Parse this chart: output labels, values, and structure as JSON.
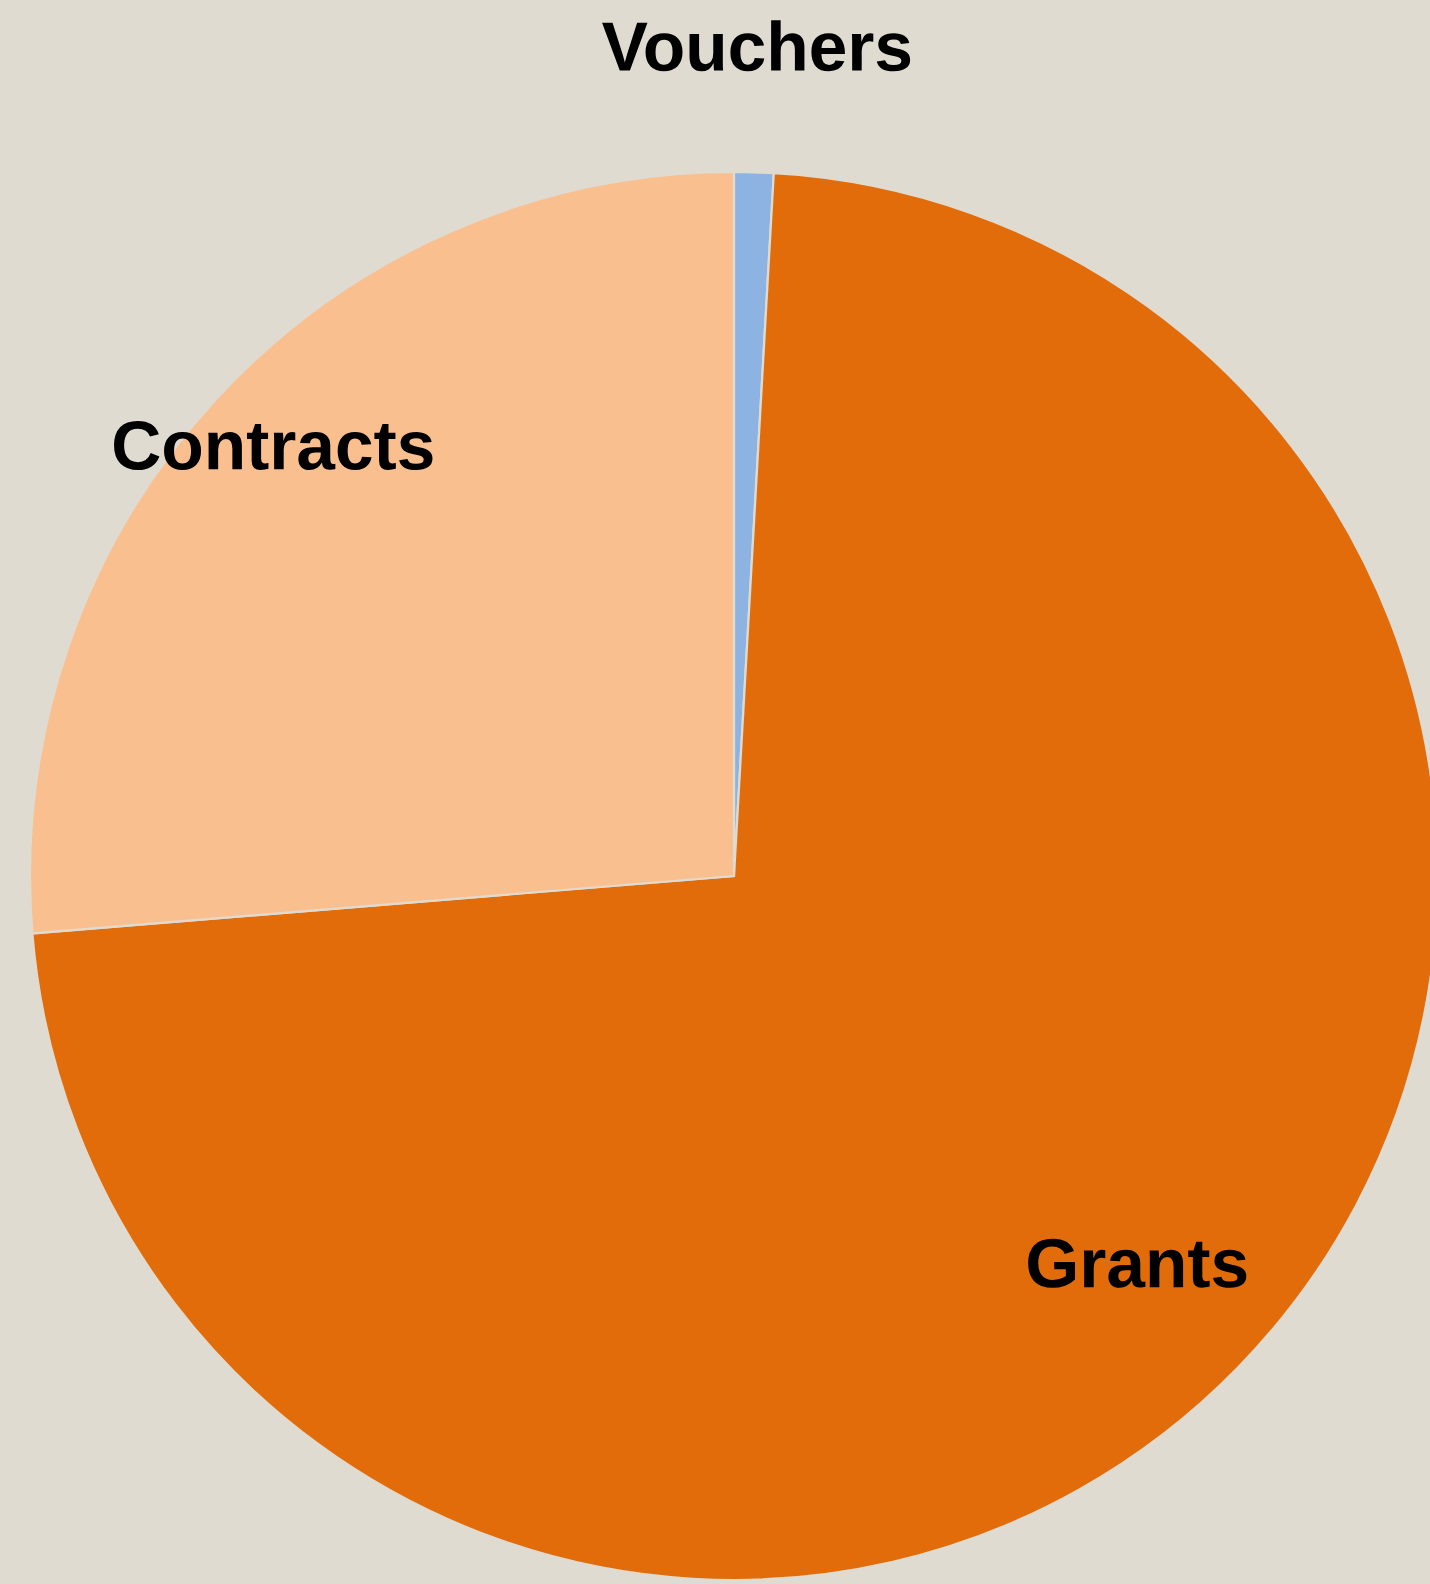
{
  "chart_data": {
    "type": "pie",
    "categories": [
      "Vouchers",
      "Grants",
      "Contracts"
    ],
    "values": [
      0.9,
      72.8,
      26.3
    ],
    "colors": [
      "#8db3e2",
      "#e36c0a",
      "#fabf8f"
    ]
  }
}
